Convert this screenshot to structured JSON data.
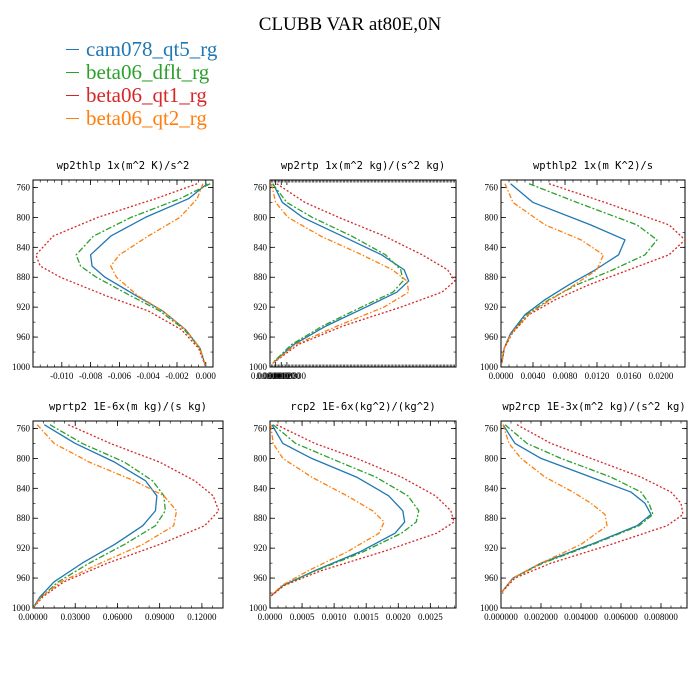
{
  "title": "CLUBB VAR at80E,0N",
  "legend": [
    {
      "name": "cam078_qt5_rg",
      "color": "#1f77b4"
    },
    {
      "name": "beta06_dflt_rg",
      "color": "#2ca02c"
    },
    {
      "name": "beta06_qt1_rg",
      "color": "#d62728"
    },
    {
      "name": "beta06_qt2_rg",
      "color": "#ff7f0e"
    }
  ],
  "chart_data": [
    {
      "type": "line",
      "title": "wp2thlp  1x(m^2 K)/s^2",
      "xlim": [
        -0.012,
        0.0005
      ],
      "ylim": [
        1000,
        750
      ],
      "yticks": [
        "760",
        "800",
        "840",
        "880",
        "920",
        "960",
        "1000"
      ],
      "xticks": [
        "-0.010",
        "-0.008",
        "-0.006",
        "-0.004",
        "-0.002",
        "0.000"
      ],
      "y": [
        755,
        775,
        800,
        825,
        850,
        865,
        880,
        905,
        925,
        950,
        975,
        1000
      ],
      "series": [
        {
          "name": "cam078_qt5_rg",
          "x": [
            0.0001,
            -0.0012,
            -0.0042,
            -0.0066,
            -0.008,
            -0.0079,
            -0.007,
            -0.0048,
            -0.003,
            -0.0014,
            -0.0004,
            0.0
          ]
        },
        {
          "name": "beta06_dflt_rg",
          "x": [
            0.0003,
            -0.0018,
            -0.0052,
            -0.0078,
            -0.009,
            -0.0087,
            -0.0076,
            -0.0052,
            -0.0032,
            -0.0015,
            -0.0004,
            0.0
          ]
        },
        {
          "name": "beta06_qt1_rg",
          "x": [
            -0.0006,
            -0.0035,
            -0.0075,
            -0.0106,
            -0.0118,
            -0.0115,
            -0.0101,
            -0.0069,
            -0.004,
            -0.0017,
            -0.0005,
            0.0
          ]
        },
        {
          "name": "beta06_qt2_rg",
          "x": [
            -0.0002,
            -0.0006,
            -0.0018,
            -0.004,
            -0.006,
            -0.0066,
            -0.0062,
            -0.0047,
            -0.003,
            -0.0014,
            -0.0004,
            0.0
          ]
        }
      ]
    },
    {
      "type": "line",
      "title": "wp2rtp  1x(m^2 kg)/(s^2 kg)",
      "xlim": [
        0,
        0.00033
      ],
      "ylim": [
        1000,
        750
      ],
      "yticks": [
        "760",
        "800",
        "840",
        "880",
        "920",
        "960",
        "1000"
      ],
      "xticks": [
        "0.0000000",
        "0.0000100",
        "0.0000200",
        "0.0000300"
      ],
      "y": [
        755,
        780,
        800,
        825,
        850,
        870,
        885,
        900,
        920,
        945,
        970,
        995
      ],
      "series": [
        {
          "name": "cam078_qt5_rg",
          "x": [
            5.5e-06,
            2.2e-05,
            5.8e-05,
            0.000128,
            0.000198,
            0.000238,
            0.000246,
            0.000225,
            0.00017,
            0.0001,
            4.2e-05,
            5e-06
          ]
        },
        {
          "name": "beta06_dflt_rg",
          "x": [
            4.5e-06,
            3e-05,
            7.5e-05,
            0.000145,
            0.000205,
            0.000232,
            0.000236,
            0.000218,
            0.000162,
            9.4e-05,
            3.8e-05,
            4e-06
          ]
        },
        {
          "name": "beta06_qt1_rg",
          "x": [
            1.2e-05,
            6.2e-05,
            0.000122,
            0.000203,
            0.00027,
            0.000315,
            0.000328,
            0.000305,
            0.000232,
            0.00013,
            5e-05,
            5e-06
          ]
        },
        {
          "name": "beta06_qt2_rg",
          "x": [
            2.5e-06,
            1e-05,
            3.2e-05,
            9e-05,
            0.000163,
            0.000217,
            0.000243,
            0.000246,
            0.000202,
            0.00012,
            4.5e-05,
            5e-06
          ]
        }
      ]
    },
    {
      "type": "line",
      "title": "wpthlp2  1x(m K^2)/s",
      "xlim": [
        0,
        0.023
      ],
      "ylim": [
        1000,
        750
      ],
      "yticks": [
        "760",
        "800",
        "840",
        "880",
        "920",
        "960",
        "1000"
      ],
      "xticks": [
        "0.0000",
        "0.0040",
        "0.0080",
        "0.0120",
        "0.0160",
        "0.0200"
      ],
      "y": [
        755,
        780,
        810,
        830,
        850,
        870,
        890,
        910,
        930,
        955,
        975,
        995
      ],
      "series": [
        {
          "name": "cam078_qt5_rg",
          "x": [
            0.0012,
            0.004,
            0.0112,
            0.0155,
            0.0147,
            0.0118,
            0.0085,
            0.0055,
            0.003,
            0.0012,
            0.0004,
            0.0001
          ]
        },
        {
          "name": "beta06_dflt_rg",
          "x": [
            0.0035,
            0.0095,
            0.017,
            0.0195,
            0.018,
            0.014,
            0.0095,
            0.006,
            0.0032,
            0.0013,
            0.0004,
            0.0001
          ]
        },
        {
          "name": "beta06_qt1_rg",
          "x": [
            0.006,
            0.013,
            0.021,
            0.023,
            0.021,
            0.016,
            0.011,
            0.0068,
            0.0035,
            0.0014,
            0.0004,
            0.0001
          ]
        },
        {
          "name": "beta06_qt2_rg",
          "x": [
            0.0005,
            0.0015,
            0.0055,
            0.01,
            0.0128,
            0.012,
            0.0092,
            0.0062,
            0.0034,
            0.0013,
            0.0004,
            0.0001
          ]
        }
      ]
    },
    {
      "type": "line",
      "title": "wprtp2  1E-6x(m kg)/(s kg)",
      "xlim": [
        0,
        0.135
      ],
      "ylim": [
        1000,
        750
      ],
      "yticks": [
        "760",
        "800",
        "840",
        "880",
        "920",
        "960",
        "1000"
      ],
      "xticks": [
        "0.00000",
        "0.03000",
        "0.06000",
        "0.09000",
        "0.12000"
      ],
      "y": [
        755,
        780,
        805,
        830,
        850,
        870,
        890,
        915,
        940,
        965,
        985,
        1000
      ],
      "series": [
        {
          "name": "cam078_qt5_rg",
          "x": [
            0.008,
            0.03,
            0.058,
            0.08,
            0.088,
            0.087,
            0.078,
            0.058,
            0.035,
            0.015,
            0.005,
            0.0
          ]
        },
        {
          "name": "beta06_dflt_rg",
          "x": [
            0.012,
            0.035,
            0.065,
            0.085,
            0.093,
            0.094,
            0.087,
            0.065,
            0.04,
            0.018,
            0.006,
            0.0
          ]
        },
        {
          "name": "beta06_qt1_rg",
          "x": [
            0.025,
            0.055,
            0.09,
            0.115,
            0.128,
            0.132,
            0.122,
            0.09,
            0.053,
            0.022,
            0.007,
            0.0
          ]
        },
        {
          "name": "beta06_qt2_rg",
          "x": [
            0.003,
            0.015,
            0.04,
            0.072,
            0.093,
            0.102,
            0.1,
            0.078,
            0.048,
            0.02,
            0.006,
            0.0
          ]
        }
      ]
    },
    {
      "type": "line",
      "title": "rcp2  1E-6x(kg^2)/(kg^2)",
      "xlim": [
        0,
        0.0029
      ],
      "ylim": [
        1000,
        750
      ],
      "yticks": [
        "760",
        "800",
        "840",
        "880",
        "920",
        "960",
        "1000"
      ],
      "xticks": [
        "0.0000",
        "0.0005",
        "0.0010",
        "0.0015",
        "0.0020",
        "0.0025"
      ],
      "y": [
        755,
        780,
        800,
        825,
        850,
        870,
        885,
        900,
        925,
        950,
        970,
        985
      ],
      "series": [
        {
          "name": "cam078_qt5_rg",
          "x": [
            3e-05,
            0.0002,
            0.00065,
            0.00135,
            0.00185,
            0.00207,
            0.0021,
            0.00195,
            0.0014,
            0.0007,
            0.0002,
            0.0
          ]
        },
        {
          "name": "beta06_dflt_rg",
          "x": [
            5e-05,
            0.0004,
            0.00095,
            0.00165,
            0.00215,
            0.00232,
            0.00228,
            0.00205,
            0.00145,
            0.00072,
            0.0002,
            0.0
          ]
        },
        {
          "name": "beta06_qt1_rg",
          "x": [
            0.0001,
            0.0007,
            0.00135,
            0.00205,
            0.00258,
            0.00282,
            0.00287,
            0.0026,
            0.00175,
            0.0008,
            0.00022,
            0.0
          ]
        },
        {
          "name": "beta06_qt2_rg",
          "x": [
            1e-05,
            5e-05,
            0.0002,
            0.00065,
            0.0012,
            0.0016,
            0.00178,
            0.0017,
            0.0012,
            0.0006,
            0.00018,
            0.0
          ]
        }
      ]
    },
    {
      "type": "line",
      "title": "wp2rcp  1E-3x(m^2 kg)/(s^2 kg)",
      "xlim": [
        0,
        0.0093
      ],
      "ylim": [
        1000,
        750
      ],
      "yticks": [
        "760",
        "800",
        "840",
        "880",
        "920",
        "960",
        "1000"
      ],
      "xticks": [
        "0.000000",
        "0.002000",
        "0.004000",
        "0.006000",
        "0.008000"
      ],
      "y": [
        755,
        780,
        800,
        825,
        845,
        860,
        875,
        890,
        915,
        940,
        960,
        980
      ],
      "series": [
        {
          "name": "cam078_qt5_rg",
          "x": [
            0.0001,
            0.0007,
            0.002,
            0.0045,
            0.0065,
            0.0072,
            0.0075,
            0.0068,
            0.0045,
            0.002,
            0.0006,
            0.0
          ]
        },
        {
          "name": "beta06_dflt_rg",
          "x": [
            0.0002,
            0.0013,
            0.003,
            0.0055,
            0.007,
            0.0074,
            0.0076,
            0.0069,
            0.0046,
            0.0021,
            0.0006,
            0.0
          ]
        },
        {
          "name": "beta06_qt1_rg",
          "x": [
            0.0008,
            0.0025,
            0.0045,
            0.007,
            0.0085,
            0.009,
            0.0091,
            0.0083,
            0.0055,
            0.0025,
            0.0007,
            0.0
          ]
        },
        {
          "name": "beta06_qt2_rg",
          "x": [
            0.0001,
            0.0004,
            0.001,
            0.0022,
            0.0036,
            0.0045,
            0.0052,
            0.0053,
            0.004,
            0.002,
            0.0006,
            0.0
          ]
        }
      ]
    }
  ]
}
